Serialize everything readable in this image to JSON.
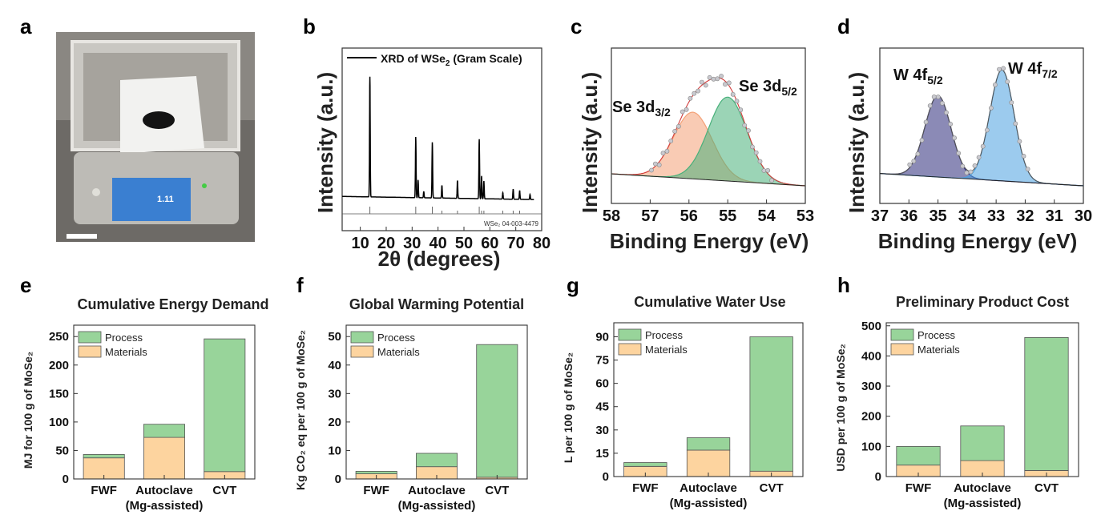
{
  "panels": {
    "a": {
      "letter": "a",
      "scale_reading": "1.11"
    },
    "b": {
      "letter": "b"
    },
    "c": {
      "letter": "c"
    },
    "d": {
      "letter": "d"
    },
    "e": {
      "letter": "e"
    },
    "f": {
      "letter": "f"
    },
    "g": {
      "letter": "g"
    },
    "h": {
      "letter": "h"
    }
  },
  "colors": {
    "process": "#98d49a",
    "materials": "#fdd49f",
    "se32": "#f4a177",
    "se52": "#48b07a",
    "w52": "#2b2a7a",
    "w72": "#4aa0e0"
  },
  "chart_data": [
    {
      "id": "b",
      "type": "line",
      "title": "",
      "legend": {
        "line_label": "XRD of WSe",
        "sub": "2",
        "suffix": " (Gram Scale)"
      },
      "reference": "WSe₂ 04-003-4479",
      "xlabel": "2θ (degrees)",
      "ylabel": "Intensity (a.u.)",
      "xlim": [
        3,
        80
      ],
      "xticks": [
        "10",
        "20",
        "30",
        "40",
        "50",
        "60",
        "70",
        "80"
      ],
      "baseline": 0.06,
      "peaks": [
        {
          "x": 13.7,
          "h": 0.95
        },
        {
          "x": 31.4,
          "h": 0.48
        },
        {
          "x": 32.3,
          "h": 0.14
        },
        {
          "x": 34.5,
          "h": 0.05
        },
        {
          "x": 37.8,
          "h": 0.44
        },
        {
          "x": 41.5,
          "h": 0.1
        },
        {
          "x": 47.5,
          "h": 0.14
        },
        {
          "x": 55.9,
          "h": 0.47
        },
        {
          "x": 56.8,
          "h": 0.18
        },
        {
          "x": 57.7,
          "h": 0.14
        },
        {
          "x": 65.0,
          "h": 0.05
        },
        {
          "x": 69.0,
          "h": 0.08
        },
        {
          "x": 71.5,
          "h": 0.07
        },
        {
          "x": 75.5,
          "h": 0.04
        }
      ],
      "reference_ticks": [
        13.7,
        31.4,
        37.8,
        41.5,
        47.5,
        55.9,
        56.8,
        57.7,
        65,
        69,
        71.5
      ]
    },
    {
      "id": "c",
      "type": "line",
      "xlabel": "Binding Energy (eV)",
      "ylabel": "Intensity (a.u.)",
      "xlim": [
        58,
        53
      ],
      "xticks": [
        "58",
        "57",
        "56",
        "55",
        "54",
        "53"
      ],
      "components": [
        {
          "name": "Se 3d",
          "sub": "3/2",
          "center": 55.9,
          "height": 0.54,
          "sigma": 0.5
        },
        {
          "name": "Se 3d",
          "sub": "5/2",
          "center": 55.0,
          "height": 0.68,
          "sigma": 0.5
        }
      ]
    },
    {
      "id": "d",
      "type": "line",
      "xlabel": "Binding Energy (eV)",
      "ylabel": "Intensity (a.u.)",
      "xlim": [
        37,
        30
      ],
      "xticks": [
        "37",
        "36",
        "35",
        "34",
        "33",
        "32",
        "31",
        "30"
      ],
      "components": [
        {
          "name": "W 4f",
          "sub": "5/2",
          "center": 35.0,
          "height": 0.66,
          "sigma": 0.45
        },
        {
          "name": "W 4f",
          "sub": "7/2",
          "center": 32.8,
          "height": 0.9,
          "sigma": 0.42
        }
      ]
    },
    {
      "id": "e",
      "type": "bar",
      "stacked": true,
      "title": "Cumulative Energy Demand",
      "ylabel": "MJ for 100 g of MoSe₂",
      "categories": [
        "FWF",
        "Autoclave",
        "CVT"
      ],
      "category_sub": [
        "",
        "(Mg-assisted)",
        ""
      ],
      "ylim": [
        0,
        270
      ],
      "yticks": [
        0,
        50,
        100,
        150,
        200,
        250
      ],
      "series": [
        {
          "name": "Materials",
          "values": [
            37,
            73,
            13
          ]
        },
        {
          "name": "Process",
          "values": [
            6,
            23,
            233
          ]
        }
      ],
      "legend": [
        "Process",
        "Materials"
      ]
    },
    {
      "id": "f",
      "type": "bar",
      "stacked": true,
      "title": "Global Warming Potential",
      "ylabel": "Kg CO₂ eq per 100 g of MoSe₂",
      "categories": [
        "FWF",
        "Autoclave",
        "CVT"
      ],
      "category_sub": [
        "",
        "(Mg-assisted)",
        ""
      ],
      "ylim": [
        0,
        54
      ],
      "yticks": [
        0,
        10,
        20,
        30,
        40,
        50
      ],
      "series": [
        {
          "name": "Materials",
          "values": [
            1.8,
            4.3,
            0.6
          ]
        },
        {
          "name": "Process",
          "values": [
            0.9,
            4.7,
            46.6
          ]
        }
      ],
      "legend": [
        "Process",
        "Materials"
      ]
    },
    {
      "id": "g",
      "type": "bar",
      "stacked": true,
      "title": "Cumulative Water Use",
      "ylabel": "L per 100 g of MoSe₂",
      "categories": [
        "FWF",
        "Autoclave",
        "CVT"
      ],
      "category_sub": [
        "",
        "(Mg-assisted)",
        ""
      ],
      "ylim": [
        0,
        99
      ],
      "yticks": [
        0,
        15,
        30,
        45,
        60,
        75,
        90
      ],
      "series": [
        {
          "name": "Materials",
          "values": [
            6.5,
            17,
            3.5
          ]
        },
        {
          "name": "Process",
          "values": [
            2.5,
            8,
            86.5
          ]
        }
      ],
      "legend": [
        "Process",
        "Materials"
      ]
    },
    {
      "id": "h",
      "type": "bar",
      "stacked": true,
      "title": "Preliminary Product Cost",
      "ylabel": "USD per 100 g of MoSe₂",
      "categories": [
        "FWF",
        "Autoclave",
        "CVT"
      ],
      "category_sub": [
        "",
        "(Mg-assisted)",
        ""
      ],
      "ylim": [
        0,
        510
      ],
      "yticks": [
        0,
        100,
        200,
        300,
        400,
        500
      ],
      "series": [
        {
          "name": "Materials",
          "values": [
            38,
            53,
            20
          ]
        },
        {
          "name": "Process",
          "values": [
            62,
            115,
            441
          ]
        }
      ],
      "legend": [
        "Process",
        "Materials"
      ]
    }
  ]
}
